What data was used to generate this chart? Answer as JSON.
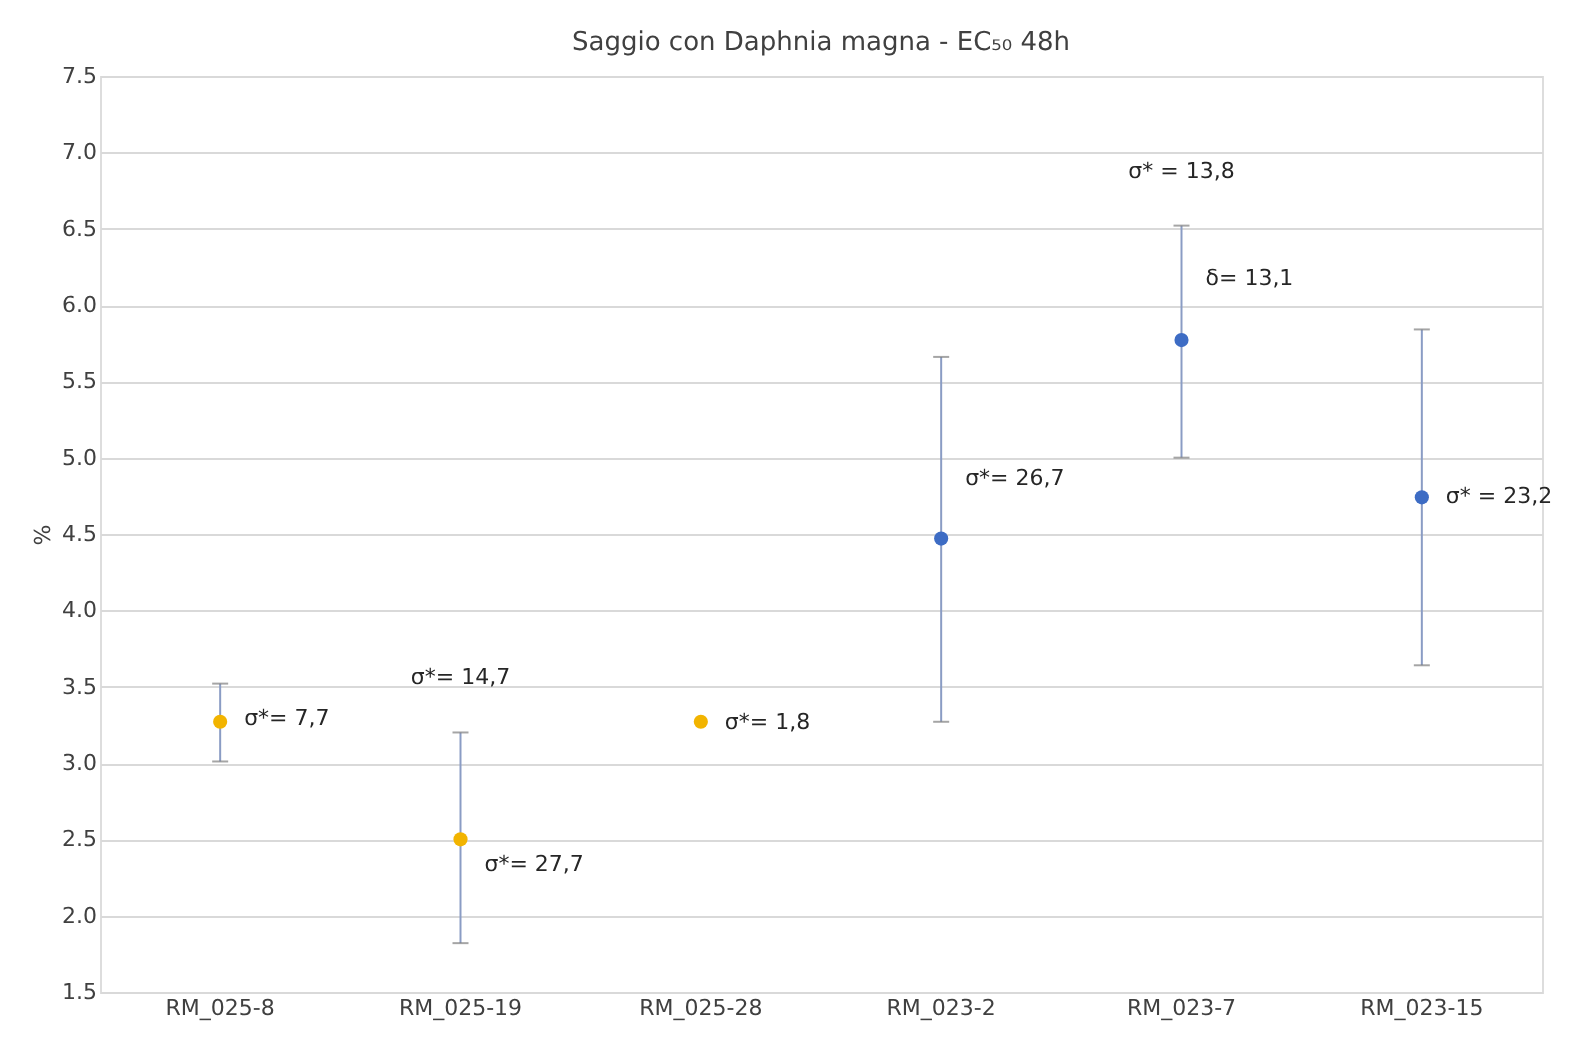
{
  "chart_data": {
    "type": "scatter",
    "title": "Saggio con Daphnia magna - EC₅₀ 48h",
    "ylabel": "%",
    "categories": [
      "RM_025-8",
      "RM_025-19",
      "RM_025-28",
      "RM_023-2",
      "RM_023-7",
      "RM_023-15"
    ],
    "values": [
      3.27,
      2.5,
      3.27,
      4.47,
      5.77,
      4.74
    ],
    "errors": [
      [
        3.01,
        3.52
      ],
      [
        1.82,
        3.2
      ],
      null,
      [
        3.27,
        5.66
      ],
      [
        5.0,
        6.52
      ],
      [
        3.64,
        5.84
      ]
    ],
    "colors": [
      "#f2b400",
      "#f2b400",
      "#f2b400",
      "#3d6cc4",
      "#3d6cc4",
      "#3d6cc4"
    ],
    "ylim": [
      1.5,
      7.5
    ],
    "yticks": [
      1.5,
      {
        "value": 2,
        "label": "2.0"
      },
      2.5,
      {
        "value": 3,
        "label": "3.0"
      },
      3.5,
      {
        "value": 4,
        "label": "4.0"
      },
      4.5,
      {
        "value": 5,
        "label": "5.0"
      },
      5.5,
      {
        "value": 6,
        "label": "6.0"
      },
      6.5,
      {
        "value": 7,
        "label": "7.0"
      },
      7.5
    ],
    "grid": "y",
    "marker": "circle",
    "annotations": [
      {
        "text": "σ*= 7,7",
        "x": "RM_025-8",
        "y": 3.29
      },
      {
        "text": "σ*= 27,7",
        "x": "RM_025-19",
        "y": 2.33
      },
      {
        "text": "σ*= 1,8",
        "x": "RM_025-28",
        "y": 3.26
      },
      {
        "text": "σ*= 26,7",
        "x": "RM_023-2",
        "y": 4.86
      },
      {
        "text": "δ= 13,1",
        "x": "RM_023-7",
        "y": 6.17
      },
      {
        "text": "σ* = 23,2",
        "x": "RM_023-15",
        "y": 4.74
      },
      {
        "text": "σ*= 14,7",
        "x": "RM_025-19",
        "y": 3.2
      },
      {
        "text": "σ* = 13,8",
        "x": "RM_023-7",
        "y": 6.52
      }
    ]
  }
}
